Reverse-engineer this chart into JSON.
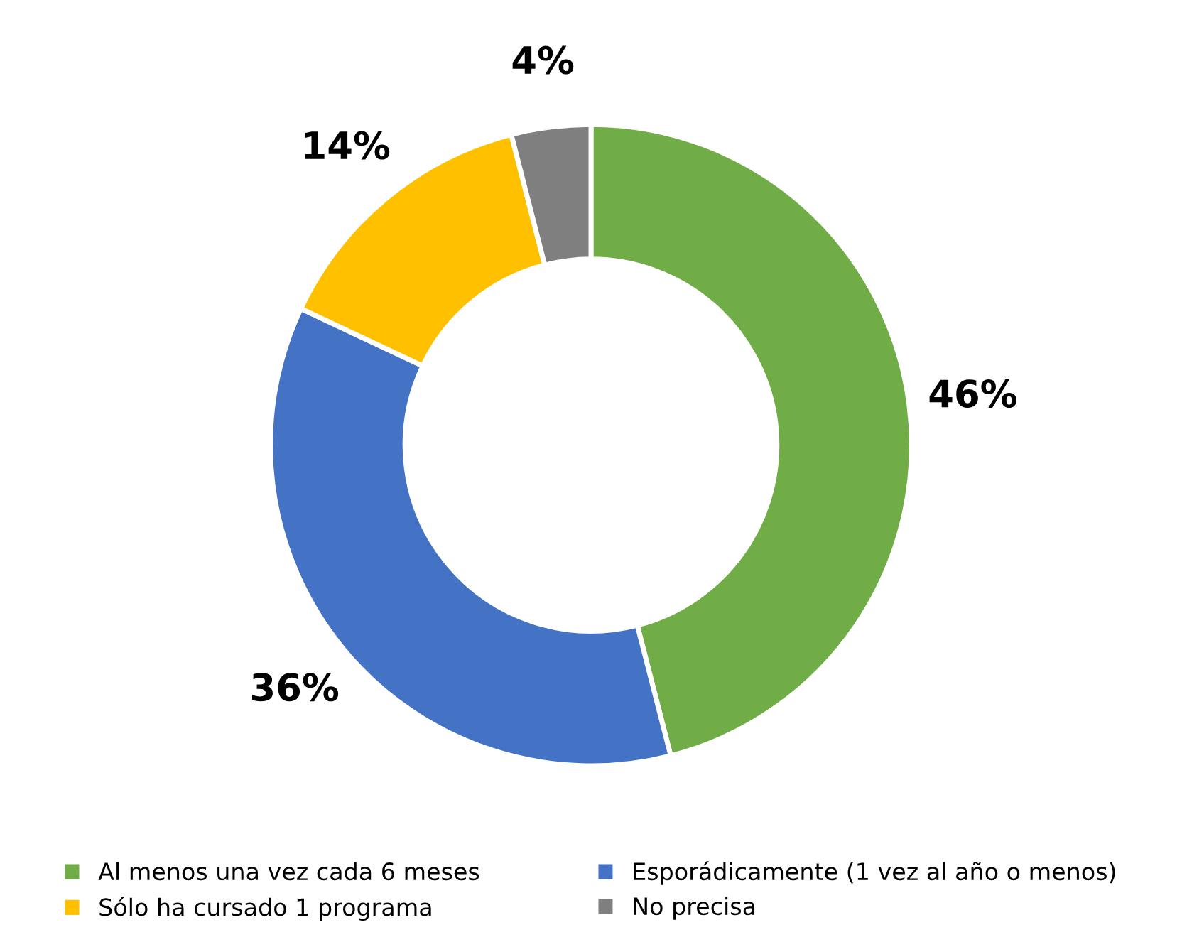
{
  "chart_data": {
    "type": "donut",
    "categories": [
      "Al menos una vez cada 6 meses",
      "Esporádicamente (1 vez al año o menos)",
      "Sólo ha cursado 1 programa",
      "No precisa"
    ],
    "values": [
      46,
      36,
      14,
      4
    ],
    "colors": [
      "#70ad47",
      "#4472c4",
      "#ffc000",
      "#7f7f7f"
    ],
    "value_labels": [
      "46%",
      "36%",
      "14%",
      "4%"
    ],
    "legend": "bottom"
  }
}
